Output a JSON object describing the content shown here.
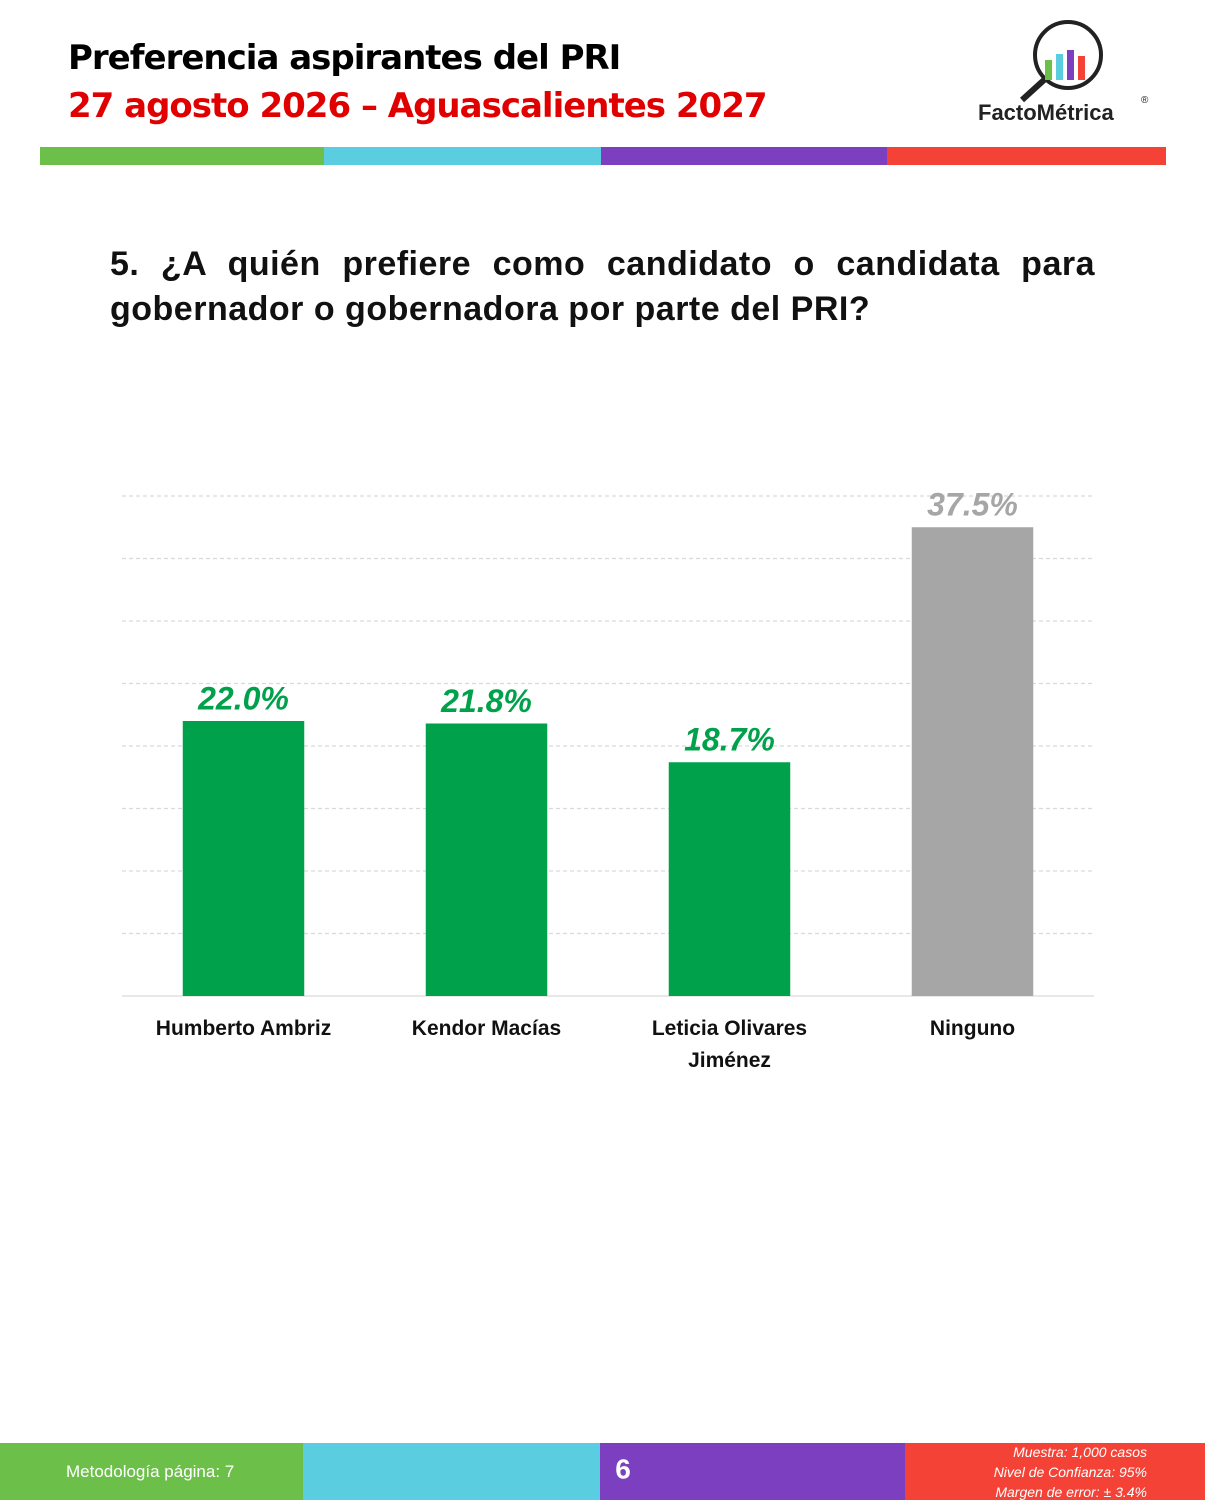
{
  "header": {
    "title": "Preferencia aspirantes del PRI",
    "subtitle": "27 agosto 2026 – Aguascalientes 2027",
    "logo": "FactoMétrica",
    "logo_mark": "®"
  },
  "question": "5. ¿A quién prefiere como candidato o candidata para gobernador o gobernadora por parte del PRI?",
  "chart_data": {
    "type": "bar",
    "categories": [
      "Humberto Ambriz",
      "Kendor Macías",
      "Leticia Olivares Jiménez",
      "Ninguno"
    ],
    "values": [
      22.0,
      21.8,
      18.7,
      37.5
    ],
    "value_labels": [
      "22.0%",
      "21.8%",
      "18.7%",
      "37.5%"
    ],
    "colors": [
      "#00a14b",
      "#00a14b",
      "#00a14b",
      "#a6a6a6"
    ],
    "ylim": [
      0,
      40
    ],
    "yticks": [
      0,
      5,
      10,
      15,
      20,
      25,
      30,
      35,
      40
    ],
    "grid": true
  },
  "footer": {
    "methodology": "Metodología página: 7",
    "page": "6",
    "sample": "Muestra:  1,000 casos",
    "confidence": "Nivel de Confianza: 95%",
    "error": "Margen de error: ± 3.4%"
  }
}
